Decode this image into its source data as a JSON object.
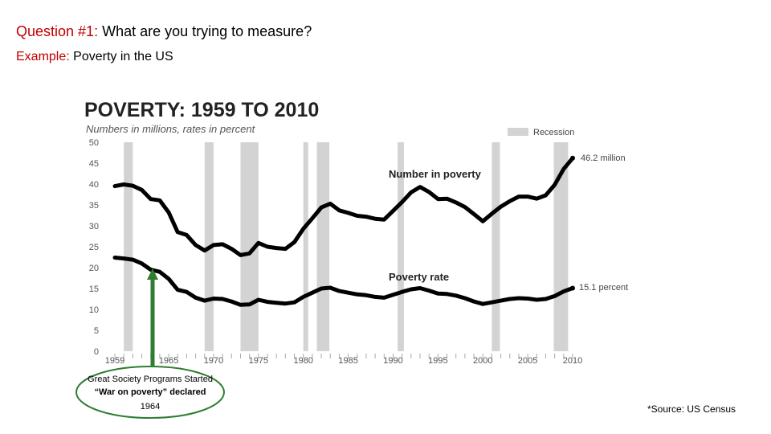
{
  "question": {
    "prefix": "Question #1:",
    "text": " What are you trying to measure?"
  },
  "example": {
    "prefix": "Example:",
    "text": " Poverty in the US"
  },
  "source_note": "*Source: US Census",
  "annotation": {
    "line1": "Great Society Programs Started",
    "line2": "“War on poverty” declared",
    "line3": "1964"
  },
  "colors": {
    "accent_red": "#c00000",
    "recession": "#d3d3d3",
    "line": "#000000",
    "arrow": "#2e7d32"
  },
  "chart_data": {
    "type": "line",
    "title": "POVERTY: 1959 TO 2010",
    "subtitle": "Numbers in millions, rates in percent",
    "legend": "Recession",
    "xlim": [
      1959,
      2010
    ],
    "ylim": [
      0,
      50
    ],
    "yticks": [
      "0",
      "5",
      "10",
      "15",
      "20",
      "25",
      "30",
      "35",
      "40",
      "45",
      "50"
    ],
    "xticks": [
      "1959",
      "1965",
      "1970",
      "1975",
      "1980",
      "1985",
      "1990",
      "1995",
      "2000",
      "2005",
      "2010"
    ],
    "recessions": [
      [
        1960,
        1961
      ],
      [
        1969,
        1970
      ],
      [
        1973,
        1975
      ],
      [
        1980,
        1980.5
      ],
      [
        1981.5,
        1982.9
      ],
      [
        1990.5,
        1991.2
      ],
      [
        2001,
        2001.9
      ],
      [
        2007.9,
        2009.5
      ]
    ],
    "series": [
      {
        "name": "Number in poverty",
        "end_label": "46.2 million",
        "x": [
          1959,
          1960,
          1961,
          1962,
          1963,
          1964,
          1965,
          1966,
          1967,
          1968,
          1969,
          1970,
          1971,
          1972,
          1973,
          1974,
          1975,
          1976,
          1977,
          1978,
          1979,
          1980,
          1981,
          1982,
          1983,
          1984,
          1985,
          1986,
          1987,
          1988,
          1989,
          1990,
          1991,
          1992,
          1993,
          1994,
          1995,
          1996,
          1997,
          1998,
          1999,
          2000,
          2001,
          2002,
          2003,
          2004,
          2005,
          2006,
          2007,
          2008,
          2009,
          2010
        ],
        "values": [
          39.5,
          39.9,
          39.6,
          38.6,
          36.4,
          36.1,
          33.2,
          28.5,
          27.8,
          25.4,
          24.1,
          25.4,
          25.6,
          24.5,
          23.0,
          23.4,
          25.9,
          25.0,
          24.7,
          24.5,
          26.1,
          29.3,
          31.8,
          34.4,
          35.3,
          33.7,
          33.1,
          32.4,
          32.2,
          31.7,
          31.5,
          33.6,
          35.7,
          38.0,
          39.3,
          38.1,
          36.4,
          36.5,
          35.6,
          34.5,
          32.8,
          31.1,
          32.9,
          34.6,
          35.9,
          37.0,
          37.0,
          36.5,
          37.3,
          39.8,
          43.6,
          46.2
        ]
      },
      {
        "name": "Poverty rate",
        "end_label": "15.1 percent",
        "x": [
          1959,
          1960,
          1961,
          1962,
          1963,
          1964,
          1965,
          1966,
          1967,
          1968,
          1969,
          1970,
          1971,
          1972,
          1973,
          1974,
          1975,
          1976,
          1977,
          1978,
          1979,
          1980,
          1981,
          1982,
          1983,
          1984,
          1985,
          1986,
          1987,
          1988,
          1989,
          1990,
          1991,
          1992,
          1993,
          1994,
          1995,
          1996,
          1997,
          1998,
          1999,
          2000,
          2001,
          2002,
          2003,
          2004,
          2005,
          2006,
          2007,
          2008,
          2009,
          2010
        ],
        "values": [
          22.4,
          22.2,
          21.9,
          21.0,
          19.5,
          19.0,
          17.3,
          14.7,
          14.2,
          12.8,
          12.1,
          12.6,
          12.5,
          11.9,
          11.1,
          11.2,
          12.3,
          11.8,
          11.6,
          11.4,
          11.7,
          13.0,
          14.0,
          15.0,
          15.2,
          14.4,
          14.0,
          13.6,
          13.4,
          13.0,
          12.8,
          13.5,
          14.2,
          14.8,
          15.1,
          14.5,
          13.8,
          13.7,
          13.3,
          12.7,
          11.9,
          11.3,
          11.7,
          12.1,
          12.5,
          12.7,
          12.6,
          12.3,
          12.5,
          13.2,
          14.3,
          15.1
        ]
      }
    ],
    "series_labels": [
      "Number in poverty",
      "Poverty rate"
    ]
  }
}
